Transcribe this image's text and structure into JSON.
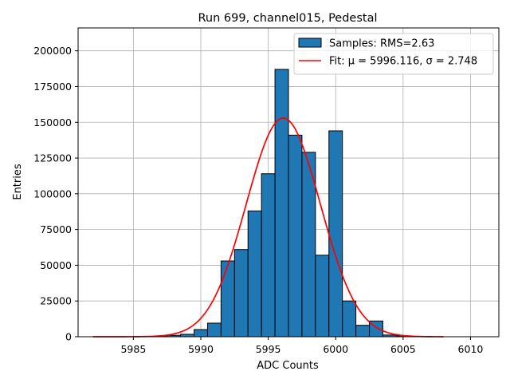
{
  "chart_data": {
    "type": "bar",
    "title": "Run 699, channel015, Pedestal",
    "xlabel": "ADC Counts",
    "ylabel": "Entries",
    "xlim": [
      5980.9,
      6012.1
    ],
    "ylim": [
      0,
      216000
    ],
    "grid": true,
    "legend_position": "top-right",
    "bin_width": 1,
    "bins": [
      {
        "x": 5987,
        "value": 500
      },
      {
        "x": 5988,
        "value": 1000
      },
      {
        "x": 5989,
        "value": 1700
      },
      {
        "x": 5990,
        "value": 5000
      },
      {
        "x": 5991,
        "value": 9500
      },
      {
        "x": 5992,
        "value": 53000
      },
      {
        "x": 5993,
        "value": 61000
      },
      {
        "x": 5994,
        "value": 88000
      },
      {
        "x": 5995,
        "value": 114000
      },
      {
        "x": 5996,
        "value": 187000
      },
      {
        "x": 5997,
        "value": 141000
      },
      {
        "x": 5998,
        "value": 129000
      },
      {
        "x": 5999,
        "value": 57000
      },
      {
        "x": 6000,
        "value": 144000
      },
      {
        "x": 6001,
        "value": 25000
      },
      {
        "x": 6002,
        "value": 8000
      },
      {
        "x": 6003,
        "value": 11000
      },
      {
        "x": 6004,
        "value": 1200
      },
      {
        "x": 6005,
        "value": 600
      }
    ],
    "fit": {
      "mu": 5996.116,
      "sigma": 2.748,
      "amplitude": 153000,
      "x_range": [
        5982,
        6008
      ]
    },
    "x_ticks": [
      5985,
      5990,
      5995,
      6000,
      6005,
      6010
    ],
    "y_ticks": [
      0,
      25000,
      50000,
      75000,
      100000,
      125000,
      150000,
      175000,
      200000
    ],
    "legend": {
      "samples_label": "Samples: RMS=2.63",
      "fit_label": "Fit: μ = 5996.116, σ = 2.748"
    },
    "colors": {
      "bar_fill": "#1f77b4",
      "bar_edge": "#000000",
      "fit_line": "#ff0000",
      "grid": "#b0b0b0"
    }
  }
}
